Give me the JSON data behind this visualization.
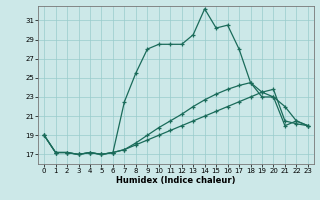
{
  "xlabel": "Humidex (Indice chaleur)",
  "bg_color": "#cce8e8",
  "grid_color": "#99cccc",
  "line_color": "#1a6b5a",
  "xlim": [
    -0.5,
    23.5
  ],
  "ylim": [
    16.0,
    32.5
  ],
  "yticks": [
    17,
    19,
    21,
    23,
    25,
    27,
    29,
    31
  ],
  "xticks": [
    0,
    1,
    2,
    3,
    4,
    5,
    6,
    7,
    8,
    9,
    10,
    11,
    12,
    13,
    14,
    15,
    16,
    17,
    18,
    19,
    20,
    21,
    22,
    23
  ],
  "y_main": [
    19.0,
    17.2,
    17.2,
    17.0,
    17.2,
    17.0,
    17.2,
    22.5,
    25.5,
    28.0,
    28.5,
    28.5,
    28.5,
    29.5,
    32.2,
    30.2,
    30.5,
    28.0,
    24.5,
    23.0,
    23.0,
    20.0,
    20.5,
    20.0
  ],
  "y_mid": [
    19.0,
    17.2,
    17.2,
    17.0,
    17.2,
    17.0,
    17.2,
    17.5,
    18.2,
    19.0,
    19.8,
    20.5,
    21.2,
    22.0,
    22.7,
    23.3,
    23.8,
    24.2,
    24.5,
    23.5,
    23.0,
    22.0,
    20.5,
    20.0
  ],
  "y_low": [
    19.0,
    17.2,
    17.2,
    17.0,
    17.2,
    17.0,
    17.2,
    17.5,
    18.0,
    18.5,
    19.0,
    19.5,
    20.0,
    20.5,
    21.0,
    21.5,
    22.0,
    22.5,
    23.0,
    23.5,
    23.8,
    20.5,
    20.2,
    20.0
  ]
}
